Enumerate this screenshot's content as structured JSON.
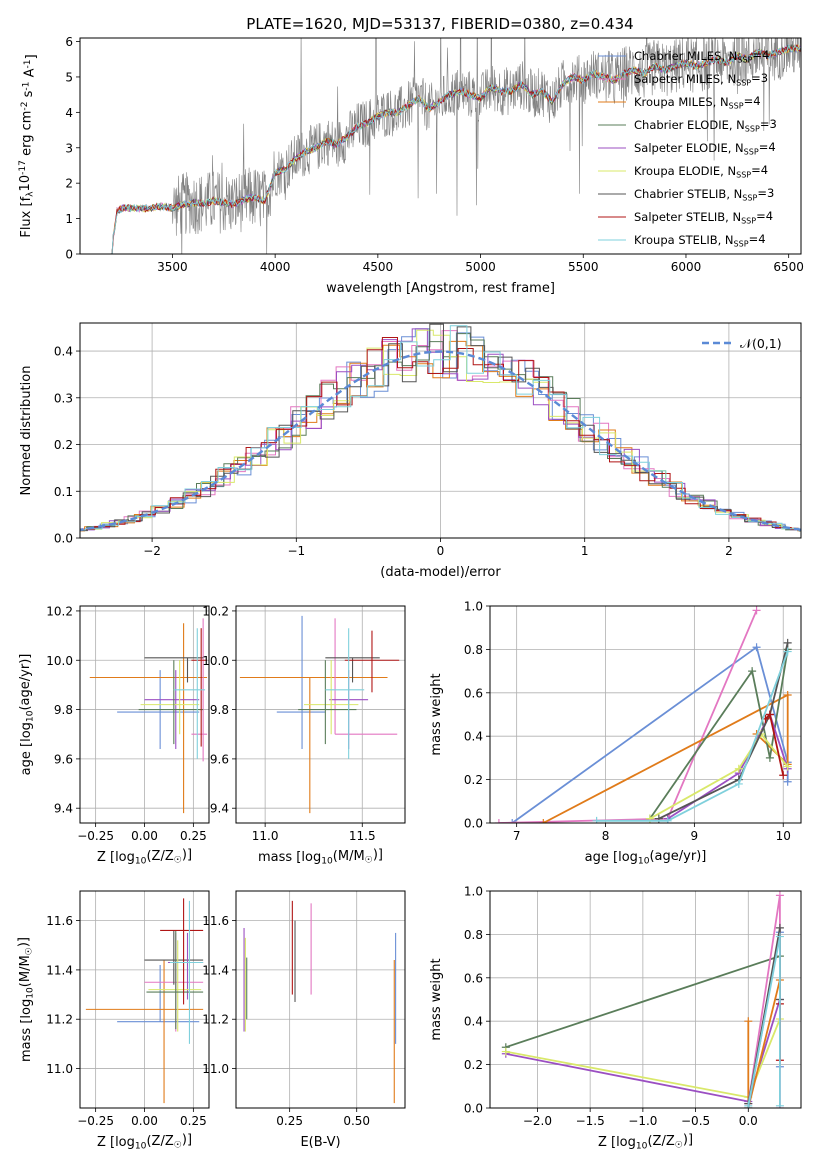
{
  "figure_title": "PLATE=1620, MJD=53137, FIBERID=0380, z=0.434",
  "series_colors": [
    "#6a8fd6",
    "#e377c2",
    "#e07b1a",
    "#5a7d5a",
    "#9b4fc2",
    "#d9e86a",
    "#555555",
    "#b01515",
    "#7fd0dc"
  ],
  "chart_data": [
    {
      "id": "spectrum",
      "type": "line",
      "title": "PLATE=1620, MJD=53137, FIBERID=0380, z=0.434",
      "xlabel": "wavelength [Angstrom, rest frame]",
      "ylabel": "Flux [f$_\\lambda$10$^{-17}$ erg cm$^{-2}$ s$^{-1}$ A$^{-1}$]",
      "xlim": [
        3050,
        6560
      ],
      "ylim": [
        0,
        6.1
      ],
      "xticks": [
        3500,
        4000,
        4500,
        5000,
        5500,
        6000,
        6500
      ],
      "yticks": [
        0,
        1,
        2,
        3,
        4,
        5,
        6
      ],
      "grid": false,
      "legend_loc": "upper right",
      "data_color": "#808080",
      "data_x": [
        3200,
        3230,
        3260,
        3300,
        3350,
        3400,
        3450,
        3500,
        3550,
        3600,
        3650,
        3700,
        3750,
        3800,
        3850,
        3900,
        3950,
        4000,
        4050,
        4100,
        4150,
        4200,
        4250,
        4300,
        4350,
        4400,
        4450,
        4500,
        4550,
        4600,
        4650,
        4700,
        4750,
        4800,
        4850,
        4900,
        4950,
        5000,
        5050,
        5100,
        5150,
        5200,
        5250,
        5300,
        5350,
        5400,
        5450,
        5500,
        5550,
        5600,
        5650,
        5700,
        5750,
        5800,
        5850,
        5900,
        5950,
        6000,
        6050,
        6100,
        6150,
        6200,
        6250,
        6300,
        6350,
        6400,
        6450,
        6500,
        6550
      ],
      "model_y": [
        0,
        1.2,
        1.3,
        1.3,
        1.28,
        1.3,
        1.35,
        1.3,
        1.4,
        1.45,
        1.42,
        1.5,
        1.45,
        1.4,
        1.55,
        1.6,
        1.5,
        2.3,
        2.4,
        2.7,
        2.9,
        3.0,
        3.2,
        3.1,
        3.3,
        3.6,
        3.7,
        3.9,
        4.0,
        4.0,
        4.2,
        4.4,
        4.1,
        4.3,
        4.5,
        4.6,
        4.5,
        4.4,
        4.7,
        4.6,
        4.6,
        4.8,
        4.5,
        4.6,
        4.3,
        4.8,
        5.0,
        4.9,
        5.1,
        5.0,
        4.9,
        5.1,
        5.2,
        5.1,
        5.3,
        5.2,
        5.3,
        5.4,
        5.3,
        5.4,
        5.5,
        5.4,
        5.6,
        5.5,
        5.7,
        5.6,
        5.7,
        5.8,
        5.8
      ],
      "legend": [
        "Chabrier MILES, N$_{SSP}$=4",
        "Salpeter MILES, N$_{SSP}$=3",
        "Kroupa MILES, N$_{SSP}$=4",
        "Chabrier ELODIE, N$_{SSP}$=3",
        "Salpeter ELODIE, N$_{SSP}$=4",
        "Kroupa ELODIE, N$_{SSP}$=4",
        "Chabrier STELIB, N$_{SSP}$=3",
        "Salpeter STELIB, N$_{SSP}$=4",
        "Kroupa STELIB, N$_{SSP}$=4"
      ]
    },
    {
      "id": "residuals",
      "type": "line",
      "xlabel": "(data-model)/error",
      "ylabel": "Normed distribution",
      "xlim": [
        -2.5,
        2.5
      ],
      "ylim": [
        0,
        0.46
      ],
      "xticks": [
        -2,
        -1,
        0,
        1,
        2
      ],
      "yticks": [
        0.0,
        0.1,
        0.2,
        0.3,
        0.4
      ],
      "grid": true,
      "legend_loc": "upper right",
      "gaussian_label": "$\\mathcal{N}(0,1)$",
      "gaussian_color": "#5b8ad6"
    },
    {
      "id": "age_vs_Z",
      "type": "scatter",
      "xlabel": "Z [log$_{10}$($Z/Z_\\odot$)]",
      "ylabel": "age  [log$_{10}$($age/yr$)]",
      "xlim": [
        -0.33,
        0.33
      ],
      "ylim": [
        9.34,
        10.22
      ],
      "xticks": [
        -0.25,
        0.0,
        0.25
      ],
      "yticks": [
        9.4,
        9.6,
        9.8,
        10.0,
        10.2
      ],
      "grid": true,
      "points": [
        {
          "x": 0.08,
          "xerr": [
            0.22,
            0.2
          ],
          "y": 9.79,
          "yerr": [
            0.15,
            0.17
          ],
          "c": 0
        },
        {
          "x": 0.2,
          "xerr": [
            0.48,
            0.12
          ],
          "y": 9.93,
          "yerr": [
            0.55,
            0.22
          ],
          "c": 2
        },
        {
          "x": 0.3,
          "xerr": [
            0.06,
            0.02
          ],
          "y": 9.7,
          "yerr": [
            0.11,
            0.47
          ],
          "c": 1
        },
        {
          "x": 0.22,
          "xerr": [
            0.22,
            0.08
          ],
          "y": 10.01,
          "yerr": [
            0.1,
            0.0
          ],
          "c": 6
        },
        {
          "x": 0.16,
          "xerr": [
            0.16,
            0.12
          ],
          "y": 9.84,
          "yerr": [
            0.2,
            0.12
          ],
          "c": 4
        },
        {
          "x": 0.18,
          "xerr": [
            0.2,
            0.1
          ],
          "y": 9.82,
          "yerr": [
            0.12,
            0.18
          ],
          "c": 5
        },
        {
          "x": 0.15,
          "xerr": [
            0.18,
            0.15
          ],
          "y": 9.8,
          "yerr": [
            0.14,
            0.2
          ],
          "c": 3
        },
        {
          "x": 0.29,
          "xerr": [
            0.05,
            0.03
          ],
          "y": 10.0,
          "yerr": [
            0.35,
            0.13
          ],
          "c": 7
        },
        {
          "x": 0.27,
          "xerr": [
            0.12,
            0.04
          ],
          "y": 9.88,
          "yerr": [
            0.28,
            0.25
          ],
          "c": 8
        }
      ]
    },
    {
      "id": "age_vs_mass",
      "type": "scatter",
      "xlabel": "mass [log$_{10}$($M/M_\\odot$)]",
      "ylabel": "",
      "xlim": [
        10.85,
        11.72
      ],
      "ylim": [
        9.34,
        10.22
      ],
      "xticks": [
        11.0,
        11.5
      ],
      "yticks": [
        9.4,
        9.6,
        9.8,
        10.0,
        10.2
      ],
      "grid": true,
      "points": [
        {
          "x": 11.19,
          "xerr": [
            0.13,
            0.12
          ],
          "y": 9.79,
          "yerr": [
            0.15,
            0.39
          ],
          "c": 0
        },
        {
          "x": 11.23,
          "xerr": [
            0.36,
            0.4
          ],
          "y": 9.93,
          "yerr": [
            0.55,
            0.0
          ],
          "c": 2
        },
        {
          "x": 11.36,
          "xerr": [
            0.0,
            0.32
          ],
          "y": 9.7,
          "yerr": [
            0.0,
            0.47
          ],
          "c": 1
        },
        {
          "x": 11.45,
          "xerr": [
            0.14,
            0.14
          ],
          "y": 10.01,
          "yerr": [
            0.1,
            0.0
          ],
          "c": 6
        },
        {
          "x": 11.43,
          "xerr": [
            0.1,
            0.1
          ],
          "y": 9.84,
          "yerr": [
            0.2,
            0.12
          ],
          "c": 4
        },
        {
          "x": 11.34,
          "xerr": [
            0.14,
            0.14
          ],
          "y": 9.82,
          "yerr": [
            0.12,
            0.18
          ],
          "c": 5
        },
        {
          "x": 11.31,
          "xerr": [
            0.14,
            0.16
          ],
          "y": 9.8,
          "yerr": [
            0.14,
            0.2
          ],
          "c": 3
        },
        {
          "x": 11.55,
          "xerr": [
            0.14,
            0.14
          ],
          "y": 10.0,
          "yerr": [
            0.13,
            0.12
          ],
          "c": 7
        },
        {
          "x": 11.43,
          "xerr": [
            0.12,
            0.08
          ],
          "y": 9.88,
          "yerr": [
            0.28,
            0.25
          ],
          "c": 8
        }
      ]
    },
    {
      "id": "weight_vs_age",
      "type": "line",
      "xlabel": "age  [log$_{10}$($age/yr$)]",
      "ylabel": "mass weight",
      "xlim": [
        6.7,
        10.2
      ],
      "ylim": [
        0,
        1.0
      ],
      "xticks": [
        7,
        8,
        9,
        10
      ],
      "yticks": [
        0.0,
        0.2,
        0.4,
        0.6,
        0.8,
        1.0
      ],
      "grid": true,
      "series": [
        {
          "c": 0,
          "x": [
            6.95,
            9.7,
            10.05,
            10.05
          ],
          "y": [
            0.0,
            0.81,
            0.28,
            0.19
          ]
        },
        {
          "c": 1,
          "x": [
            6.8,
            8.7,
            9.7
          ],
          "y": [
            0.0,
            0.02,
            0.98
          ]
        },
        {
          "c": 2,
          "x": [
            7.3,
            10.05,
            10.05,
            9.7
          ],
          "y": [
            0.0,
            0.59,
            0.27,
            0.41
          ]
        },
        {
          "c": 3,
          "x": [
            8.5,
            9.65,
            9.85,
            10.05
          ],
          "y": [
            0.02,
            0.7,
            0.3,
            0.8
          ]
        },
        {
          "c": 4,
          "x": [
            8.7,
            9.5,
            9.85,
            10.05
          ],
          "y": [
            0.02,
            0.23,
            0.5,
            0.25
          ]
        },
        {
          "c": 5,
          "x": [
            8.5,
            9.5,
            9.75,
            10.05
          ],
          "y": [
            0.02,
            0.25,
            0.41,
            0.26
          ]
        },
        {
          "c": 6,
          "x": [
            8.6,
            9.5,
            9.85,
            10.05
          ],
          "y": [
            0.02,
            0.2,
            0.5,
            0.83
          ]
        },
        {
          "c": 7,
          "x": [
            9.8,
            9.85,
            10.0
          ],
          "y": [
            0.48,
            0.5,
            0.22
          ]
        },
        {
          "c": 8,
          "x": [
            7.9,
            8.7,
            9.5,
            10.05
          ],
          "y": [
            0.01,
            0.01,
            0.18,
            0.79
          ]
        }
      ]
    },
    {
      "id": "mass_vs_Z",
      "type": "scatter",
      "xlabel": "Z [log$_{10}$($Z/Z_\\odot$)]",
      "ylabel": "mass [log$_{10}$($M/M_\\odot$)]",
      "xlim": [
        -0.33,
        0.33
      ],
      "ylim": [
        10.84,
        11.72
      ],
      "xticks": [
        -0.25,
        0.0,
        0.25
      ],
      "yticks": [
        11.0,
        11.2,
        11.4,
        11.6
      ],
      "grid": true,
      "points": [
        {
          "x": 0.08,
          "xerr": [
            0.22,
            0.2
          ],
          "y": 11.19,
          "yerr": [
            0.0,
            0.23
          ],
          "c": 0
        },
        {
          "x": 0.1,
          "xerr": [
            0.4,
            0.2
          ],
          "y": 11.24,
          "yerr": [
            0.38,
            0.2
          ],
          "c": 2
        },
        {
          "x": 0.16,
          "xerr": [
            0.16,
            0.14
          ],
          "y": 11.35,
          "yerr": [
            0.2,
            0.2
          ],
          "c": 1
        },
        {
          "x": 0.15,
          "xerr": [
            0.15,
            0.15
          ],
          "y": 11.44,
          "yerr": [
            0.1,
            0.12
          ],
          "c": 6
        },
        {
          "x": 0.22,
          "xerr": [
            0.1,
            0.08
          ],
          "y": 11.43,
          "yerr": [
            0.15,
            0.12
          ],
          "c": 4
        },
        {
          "x": 0.17,
          "xerr": [
            0.15,
            0.12
          ],
          "y": 11.32,
          "yerr": [
            0.17,
            0.2
          ],
          "c": 5
        },
        {
          "x": 0.16,
          "xerr": [
            0.15,
            0.14
          ],
          "y": 11.31,
          "yerr": [
            0.15,
            0.25
          ],
          "c": 3
        },
        {
          "x": 0.2,
          "xerr": [
            0.12,
            0.1
          ],
          "y": 11.56,
          "yerr": [
            0.3,
            0.13
          ],
          "c": 7
        },
        {
          "x": 0.23,
          "xerr": [
            0.1,
            0.07
          ],
          "y": 11.43,
          "yerr": [
            0.33,
            0.25
          ],
          "c": 8
        }
      ]
    },
    {
      "id": "mass_vs_ebv",
      "type": "scatter",
      "xlabel": "E(B-V)",
      "ylabel": "",
      "xlim": [
        0.05,
        0.68
      ],
      "ylim": [
        10.84,
        11.72
      ],
      "xticks": [
        0.25,
        0.5
      ],
      "yticks": [
        11.0,
        11.2,
        11.4,
        11.6
      ],
      "grid": true,
      "points": [
        {
          "x": 0.08,
          "y": 11.35,
          "yerr": [
            0.2,
            0.22
          ],
          "c": 4
        },
        {
          "x": 0.085,
          "y": 11.33,
          "yerr": [
            0.18,
            0.2
          ],
          "c": 5
        },
        {
          "x": 0.09,
          "y": 11.3,
          "yerr": [
            0.1,
            0.15
          ],
          "c": 3
        },
        {
          "x": 0.26,
          "y": 11.5,
          "yerr": [
            0.2,
            0.18
          ],
          "c": 7
        },
        {
          "x": 0.27,
          "y": 11.44,
          "yerr": [
            0.17,
            0.16
          ],
          "c": 6
        },
        {
          "x": 0.33,
          "y": 11.45,
          "yerr": [
            0.15,
            0.22
          ],
          "c": 1
        },
        {
          "x": 0.64,
          "y": 11.24,
          "yerr": [
            0.38,
            0.2
          ],
          "c": 2
        },
        {
          "x": 0.645,
          "y": 11.32,
          "yerr": [
            0.22,
            0.23
          ],
          "c": 0
        }
      ]
    },
    {
      "id": "weight_vs_Z",
      "type": "line",
      "xlabel": "Z [log$_{10}$($Z/Z_\\odot$)]",
      "ylabel": "mass weight",
      "xlim": [
        -2.45,
        0.5
      ],
      "ylim": [
        0,
        1.0
      ],
      "xticks": [
        -2.0,
        -1.5,
        -1.0,
        -0.5,
        0.0
      ],
      "yticks": [
        0.0,
        0.2,
        0.4,
        0.6,
        0.8,
        1.0
      ],
      "grid": true,
      "series": [
        {
          "c": 3,
          "x": [
            -2.3,
            0.3
          ],
          "y": [
            0.28,
            0.7
          ]
        },
        {
          "c": 4,
          "x": [
            -2.3,
            0.0,
            0.3
          ],
          "y": [
            0.25,
            0.03,
            0.5
          ]
        },
        {
          "c": 5,
          "x": [
            -2.3,
            0.0,
            0.3
          ],
          "y": [
            0.26,
            0.05,
            0.41
          ]
        },
        {
          "c": 2,
          "x": [
            0.0,
            0.0,
            0.3
          ],
          "y": [
            0.4,
            0.0,
            0.59
          ]
        },
        {
          "c": 0,
          "x": [
            0.0,
            0.3,
            0.3
          ],
          "y": [
            0.0,
            0.81,
            0.19
          ]
        },
        {
          "c": 1,
          "x": [
            0.0,
            0.3,
            0.3
          ],
          "y": [
            0.02,
            0.98,
            0.0
          ]
        },
        {
          "c": 6,
          "x": [
            0.0,
            0.3,
            0.3
          ],
          "y": [
            0.02,
            0.83,
            0.5
          ]
        },
        {
          "c": 7,
          "x": [
            0.3,
            0.3
          ],
          "y": [
            0.48,
            0.22
          ]
        },
        {
          "c": 8,
          "x": [
            0.0,
            0.3,
            0.3
          ],
          "y": [
            0.01,
            0.79,
            0.01
          ]
        }
      ]
    }
  ]
}
